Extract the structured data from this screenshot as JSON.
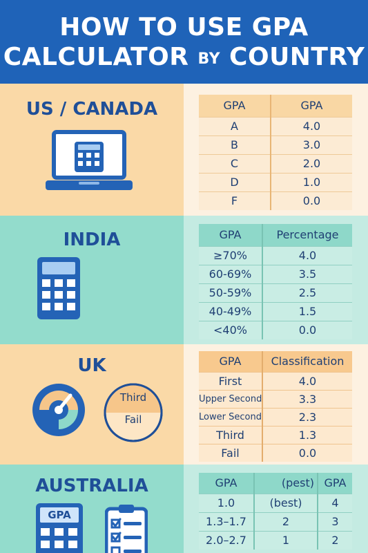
{
  "header": {
    "line1": "HOW TO USE GPA",
    "line2_main": "CALCULATOR",
    "line2_small": "BY",
    "line2_end": "COUNTRY"
  },
  "sections": {
    "us": {
      "title": "US / CANADA",
      "headers": [
        "GPA",
        "GPA"
      ],
      "rows": [
        [
          "A",
          "4.0"
        ],
        [
          "B",
          "3.0"
        ],
        [
          "C",
          "2.0"
        ],
        [
          "D",
          "1.0"
        ],
        [
          "F",
          "0.0"
        ]
      ],
      "icon": "laptop-calculator-icon"
    },
    "india": {
      "title": "INDIA",
      "headers": [
        "GPA",
        "Percentage"
      ],
      "rows": [
        [
          "≥70%",
          "4.0"
        ],
        [
          "60-69%",
          "3.5"
        ],
        [
          "50-59%",
          "2.5"
        ],
        [
          "40-49%",
          "1.5"
        ],
        [
          "<40%",
          "0.0"
        ]
      ],
      "icon": "calculator-icon"
    },
    "uk": {
      "title": "UK",
      "headers": [
        "GPA",
        "Classification"
      ],
      "rows": [
        [
          "First",
          "4.0"
        ],
        [
          "Upper Second",
          "3.3"
        ],
        [
          "Lower Second",
          "2.3"
        ],
        [
          "Third",
          "1.3"
        ],
        [
          "Fail",
          "0.0"
        ]
      ],
      "gauge_labels": [
        "Third",
        "Fail"
      ],
      "icons": [
        "gauge-icon",
        "pie-icon"
      ]
    },
    "australia": {
      "title": "AUSTRALIA",
      "headers": [
        "GPA",
        "(pest)",
        "GPA"
      ],
      "rows": [
        [
          "1.0",
          "(best)",
          "4"
        ],
        [
          "1.3–1.7",
          "2",
          "3"
        ],
        [
          "2.0–2.7",
          "1",
          "2"
        ]
      ],
      "icon_label": "GPA",
      "icons": [
        "gpa-calculator-icon",
        "checklist-clipboard-icon"
      ]
    }
  },
  "colors": {
    "header_blue": "#1f63b8",
    "peach": "#fad9a7",
    "mint": "#93dccc",
    "title_blue": "#1f4f98"
  }
}
